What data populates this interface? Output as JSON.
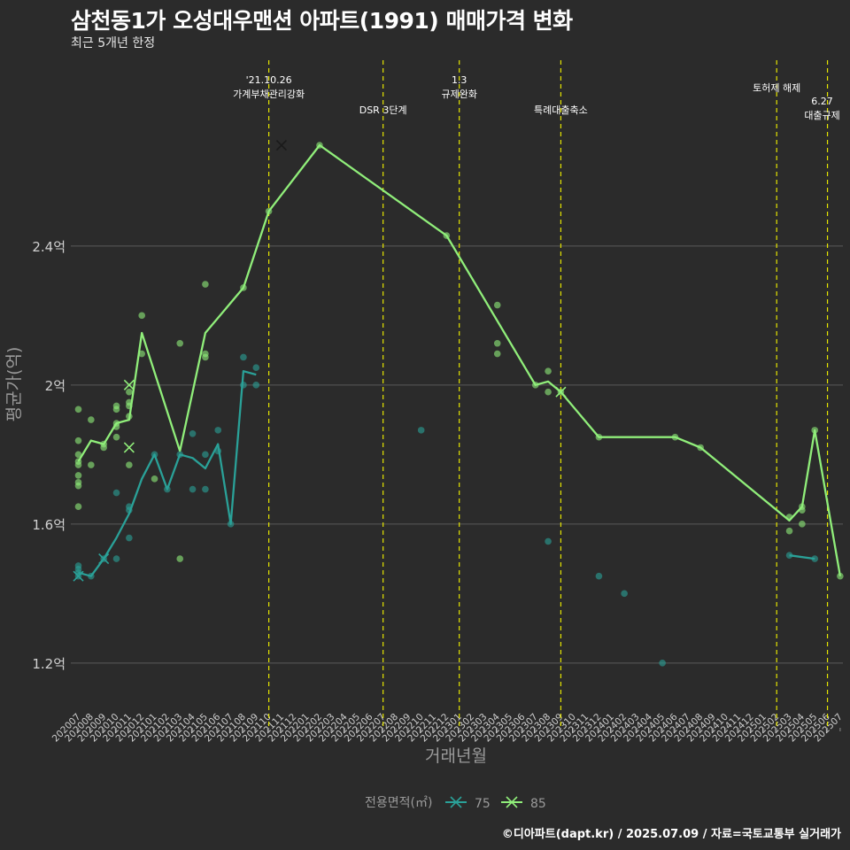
{
  "title": "삼천동1가 오성대우맨션 아파트(1991) 매매가격 변화",
  "subtitle": "최근 5개년 한정",
  "caption": "©디아파트(dapt.kr) / 2025.07.09 / 자료=국토교통부 실거래가",
  "colors": {
    "background": "#2b2b2b",
    "grid": "#5a5a5a",
    "series_75": "#2aa198",
    "series_85": "#90ee7a",
    "event_line": "#e6e600",
    "axis_text": "#bfbfbf"
  },
  "chart_data": {
    "type": "line",
    "title": "삼천동1가 오성대우맨션 아파트(1991) 매매가격 변화",
    "xlabel": "거래년월",
    "ylabel": "평균가(억)",
    "ylim": [
      1.09,
      2.95
    ],
    "yticks": [
      1.2,
      1.6,
      2.0,
      2.4
    ],
    "ytick_labels": [
      "1.2억",
      "1.6억",
      "2억",
      "2.4억"
    ],
    "categories": [
      "202007",
      "202008",
      "202009",
      "202010",
      "202011",
      "202012",
      "202101",
      "202102",
      "202103",
      "202104",
      "202105",
      "202106",
      "202107",
      "202108",
      "202109",
      "202110",
      "202111",
      "202112",
      "202201",
      "202202",
      "202203",
      "202204",
      "202205",
      "202206",
      "202207",
      "202208",
      "202209",
      "202210",
      "202211",
      "202212",
      "202301",
      "202302",
      "202303",
      "202304",
      "202305",
      "202306",
      "202307",
      "202308",
      "202309",
      "202310",
      "202311",
      "202312",
      "202401",
      "202402",
      "202403",
      "202404",
      "202405",
      "202406",
      "202407",
      "202408",
      "202409",
      "202410",
      "202411",
      "202412",
      "202501",
      "202502",
      "202503",
      "202504",
      "202505",
      "202506",
      "202507"
    ],
    "legend_title": "전용면적(㎡)",
    "series": [
      {
        "name": "75",
        "color": "#2aa198",
        "lines": [
          [
            [
              "202007",
              1.46
            ],
            [
              "202008",
              1.45
            ],
            [
              "202009",
              1.5
            ],
            [
              "202010",
              1.56
            ],
            [
              "202011",
              1.63
            ],
            [
              "202012",
              1.73
            ],
            [
              "202101",
              1.8
            ],
            [
              "202102",
              1.7
            ],
            [
              "202103",
              1.8
            ],
            [
              "202104",
              1.79
            ],
            [
              "202105",
              1.76
            ],
            [
              "202106",
              1.83
            ],
            [
              "202107",
              1.6
            ],
            [
              "202108",
              2.04
            ],
            [
              "202109",
              2.03
            ]
          ],
          [
            [
              "202503",
              1.51
            ],
            [
              "202505",
              1.5
            ]
          ]
        ],
        "points": [
          [
            "202007",
            1.45
          ],
          [
            "202007",
            1.46
          ],
          [
            "202007",
            1.47
          ],
          [
            "202007",
            1.48
          ],
          [
            "202008",
            1.45
          ],
          [
            "202009",
            1.5
          ],
          [
            "202010",
            1.5
          ],
          [
            "202010",
            1.69
          ],
          [
            "202011",
            1.56
          ],
          [
            "202011",
            1.64
          ],
          [
            "202011",
            1.65
          ],
          [
            "202101",
            1.8
          ],
          [
            "202102",
            1.7
          ],
          [
            "202103",
            1.8
          ],
          [
            "202104",
            1.7
          ],
          [
            "202104",
            1.86
          ],
          [
            "202105",
            1.7
          ],
          [
            "202105",
            1.8
          ],
          [
            "202106",
            1.81
          ],
          [
            "202106",
            1.87
          ],
          [
            "202107",
            1.6
          ],
          [
            "202108",
            2.0
          ],
          [
            "202108",
            2.08
          ],
          [
            "202109",
            2.0
          ],
          [
            "202109",
            2.05
          ],
          [
            "202210",
            1.87
          ],
          [
            "202308",
            1.55
          ],
          [
            "202312",
            1.45
          ],
          [
            "202402",
            1.4
          ],
          [
            "202405",
            1.2
          ],
          [
            "202503",
            1.51
          ],
          [
            "202505",
            1.5
          ]
        ],
        "crosses": [
          [
            "202007",
            1.45
          ],
          [
            "202009",
            1.5
          ]
        ]
      },
      {
        "name": "85",
        "color": "#90ee7a",
        "lines": [
          [
            [
              "202007",
              1.78
            ],
            [
              "202008",
              1.84
            ],
            [
              "202009",
              1.83
            ],
            [
              "202010",
              1.89
            ],
            [
              "202011",
              1.9
            ],
            [
              "202012",
              2.15
            ],
            [
              "202103",
              1.81
            ],
            [
              "202105",
              2.15
            ],
            [
              "202108",
              2.28
            ],
            [
              "202110",
              2.5
            ],
            [
              "202202",
              2.69
            ],
            [
              "202212",
              2.43
            ],
            [
              "202307",
              2.0
            ],
            [
              "202308",
              2.01
            ],
            [
              "202309",
              1.98
            ],
            [
              "202312",
              1.85
            ],
            [
              "202406",
              1.85
            ],
            [
              "202408",
              1.82
            ],
            [
              "202503",
              1.61
            ],
            [
              "202504",
              1.65
            ],
            [
              "202505",
              1.87
            ],
            [
              "202507",
              1.45
            ]
          ]
        ],
        "points": [
          [
            "202007",
            1.65
          ],
          [
            "202007",
            1.71
          ],
          [
            "202007",
            1.72
          ],
          [
            "202007",
            1.74
          ],
          [
            "202007",
            1.77
          ],
          [
            "202007",
            1.78
          ],
          [
            "202007",
            1.8
          ],
          [
            "202007",
            1.84
          ],
          [
            "202007",
            1.93
          ],
          [
            "202008",
            1.77
          ],
          [
            "202008",
            1.9
          ],
          [
            "202009",
            1.82
          ],
          [
            "202009",
            1.83
          ],
          [
            "202010",
            1.85
          ],
          [
            "202010",
            1.88
          ],
          [
            "202010",
            1.89
          ],
          [
            "202010",
            1.93
          ],
          [
            "202010",
            1.94
          ],
          [
            "202011",
            1.77
          ],
          [
            "202011",
            1.91
          ],
          [
            "202011",
            1.94
          ],
          [
            "202011",
            1.95
          ],
          [
            "202011",
            1.98
          ],
          [
            "202012",
            2.09
          ],
          [
            "202012",
            2.2
          ],
          [
            "202101",
            1.73
          ],
          [
            "202103",
            1.5
          ],
          [
            "202103",
            2.12
          ],
          [
            "202105",
            2.08
          ],
          [
            "202105",
            2.09
          ],
          [
            "202105",
            2.29
          ],
          [
            "202108",
            2.28
          ],
          [
            "202110",
            2.5
          ],
          [
            "202202",
            2.69
          ],
          [
            "202212",
            2.43
          ],
          [
            "202304",
            2.09
          ],
          [
            "202304",
            2.12
          ],
          [
            "202304",
            2.23
          ],
          [
            "202307",
            2.0
          ],
          [
            "202308",
            1.98
          ],
          [
            "202308",
            2.04
          ],
          [
            "202309",
            1.98
          ],
          [
            "202312",
            1.85
          ],
          [
            "202406",
            1.85
          ],
          [
            "202408",
            1.82
          ],
          [
            "202503",
            1.58
          ],
          [
            "202503",
            1.62
          ],
          [
            "202504",
            1.6
          ],
          [
            "202504",
            1.64
          ],
          [
            "202504",
            1.65
          ],
          [
            "202505",
            1.87
          ],
          [
            "202507",
            1.45
          ]
        ],
        "crosses": [
          [
            "202011",
            2.0
          ],
          [
            "202011",
            1.82
          ],
          [
            "202309",
            1.98
          ]
        ]
      }
    ],
    "extra_crosses": [
      {
        "color": "#1a1a1a",
        "at": [
          "202111",
          2.69
        ]
      }
    ],
    "events": [
      {
        "month": "202110",
        "label_lines": [
          "'21.10.26",
          "가계부채관리강화"
        ]
      },
      {
        "month": "202207",
        "label_lines": [
          "DSR 3단계"
        ]
      },
      {
        "month": "202301",
        "label_lines": [
          "1.3",
          "규제완화"
        ]
      },
      {
        "month": "202309",
        "label_lines": [
          "특례대출축소"
        ]
      },
      {
        "month": "202502",
        "label_lines": [
          "토허제 해제"
        ]
      },
      {
        "month": "202506",
        "label_lines": [
          "6.27",
          "대출규제"
        ]
      }
    ]
  }
}
